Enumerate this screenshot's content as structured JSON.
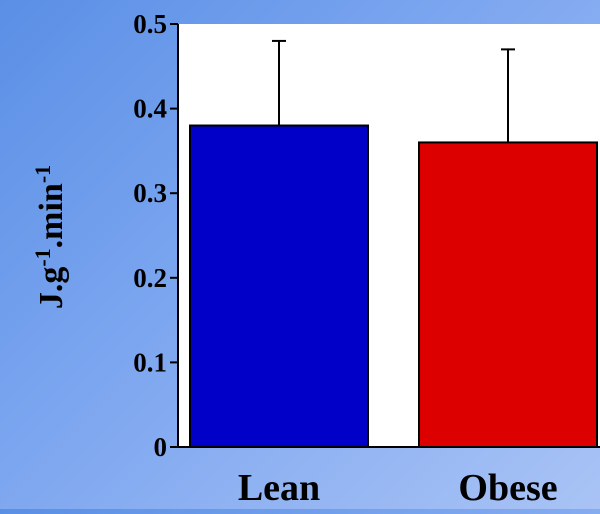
{
  "chart_data": {
    "type": "bar",
    "title": "",
    "xlabel": "",
    "ylabel": "J.g-1.min-1",
    "ylabel_parts": [
      "J.g",
      "-1",
      ".min",
      "-1"
    ],
    "categories": [
      "Lean",
      "Obese"
    ],
    "values": [
      0.38,
      0.36
    ],
    "error_upper": [
      0.48,
      0.47
    ],
    "colors": [
      "#0000c8",
      "#dc0000"
    ],
    "ylim": [
      0,
      0.5
    ],
    "yticks": [
      0,
      0.1,
      0.2,
      0.3,
      0.4,
      0.5
    ],
    "ytick_labels": [
      "0",
      "0.1",
      "0.2",
      "0.3",
      "0.4",
      "0.5"
    ],
    "grid": false,
    "legend": false
  }
}
